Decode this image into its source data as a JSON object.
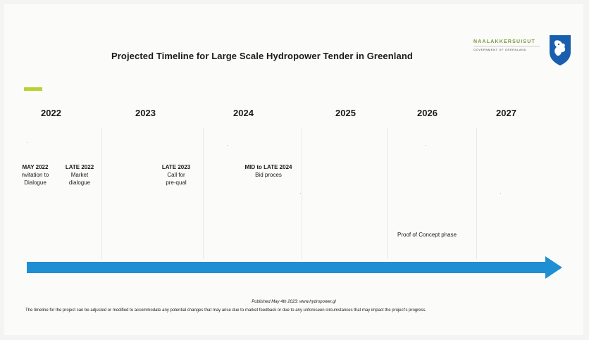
{
  "title": "Projected Timeline for Large Scale Hydropower Tender in Greenland",
  "logo": {
    "name": "NAALAKKERSUISUT",
    "subtitle": "GOVERNMENT OF GREENLAND",
    "icon": "greenland-shield-icon",
    "color": "#1a5fae"
  },
  "years": [
    "2022",
    "2023",
    "2024",
    "2025",
    "2026",
    "2027"
  ],
  "events": [
    {
      "date": "MAY 2022",
      "line1": "nvitation to",
      "line2": "Dialogue"
    },
    {
      "date": "LATE 2022",
      "line1": "Market",
      "line2": "dialogue"
    },
    {
      "date": "LATE 2023",
      "line1": "Call for",
      "line2": "pre-qual"
    },
    {
      "date": "MID to LATE 2024",
      "line1": "Bid proces",
      "line2": ""
    }
  ],
  "proof_of_concept": "Proof of Concept phase",
  "arrow_color": "#1f8fd3",
  "published": "Published May 4th 2023: www.hydropower.gl",
  "footnote": "The timeline for the project can be adjusted or modified to accommodate any potential changes that may arise due to market feedback or due to any unforeseen circumstances that may impact the project's progress."
}
